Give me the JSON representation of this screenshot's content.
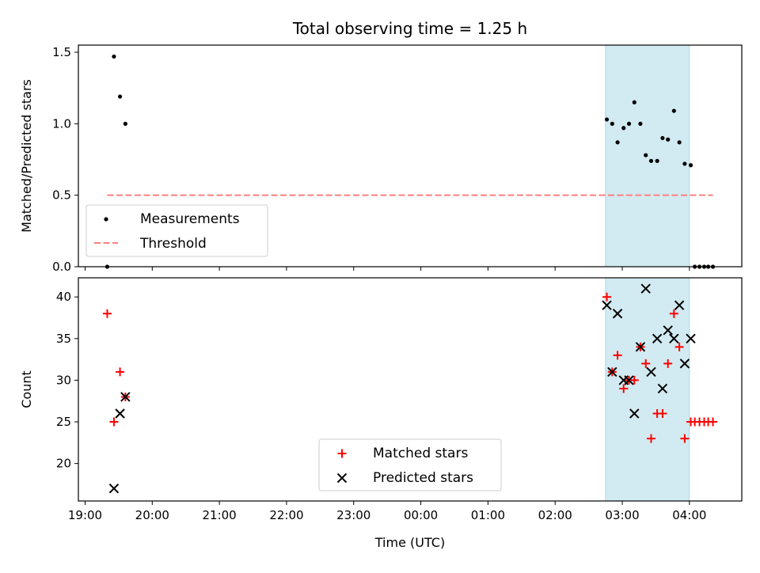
{
  "chart_data": {
    "title": "Total observing time = 1.25 h",
    "x_axis": {
      "label": "Time (UTC)",
      "unit": "hours since 19:00 UTC",
      "ticks": [
        {
          "v": 0,
          "label": "19:00"
        },
        {
          "v": 1,
          "label": "20:00"
        },
        {
          "v": 2,
          "label": "21:00"
        },
        {
          "v": 3,
          "label": "22:00"
        },
        {
          "v": 4,
          "label": "23:00"
        },
        {
          "v": 5,
          "label": "00:00"
        },
        {
          "v": 6,
          "label": "01:00"
        },
        {
          "v": 7,
          "label": "02:00"
        },
        {
          "v": 8,
          "label": "03:00"
        },
        {
          "v": 9,
          "label": "04:00"
        }
      ],
      "range": [
        -0.1,
        9.78
      ]
    },
    "highlight_span": {
      "x_start": 7.75,
      "x_end": 9.0,
      "color": "#add8e6"
    },
    "charts": [
      {
        "type": "scatter",
        "ylabel": "Matched/Predicted stars",
        "ylim": [
          0,
          1.55
        ],
        "yticks": [
          {
            "v": 0,
            "label": "0.0"
          },
          {
            "v": 0.5,
            "label": "0.5"
          },
          {
            "v": 1.0,
            "label": "1.0"
          },
          {
            "v": 1.5,
            "label": "1.5"
          }
        ],
        "legend_position": "lower-left",
        "series": [
          {
            "name": "Measurements",
            "kind": "dot",
            "color": "#000000",
            "points": [
              [
                0.33,
                0.0
              ],
              [
                0.43,
                1.47
              ],
              [
                0.52,
                1.19
              ],
              [
                0.6,
                1.0
              ],
              [
                7.77,
                1.03
              ],
              [
                7.85,
                1.0
              ],
              [
                7.93,
                0.87
              ],
              [
                8.02,
                0.97
              ],
              [
                8.1,
                1.0
              ],
              [
                8.18,
                1.15
              ],
              [
                8.27,
                1.0
              ],
              [
                8.35,
                0.78
              ],
              [
                8.43,
                0.74
              ],
              [
                8.52,
                0.74
              ],
              [
                8.6,
                0.9
              ],
              [
                8.68,
                0.89
              ],
              [
                8.77,
                1.09
              ],
              [
                8.85,
                0.87
              ],
              [
                8.93,
                0.72
              ],
              [
                9.02,
                0.71
              ],
              [
                9.08,
                0.0
              ],
              [
                9.15,
                0.0
              ],
              [
                9.22,
                0.0
              ],
              [
                9.28,
                0.0
              ],
              [
                9.35,
                0.0
              ]
            ]
          },
          {
            "name": "Threshold",
            "kind": "dashed-line",
            "color": "#ff7f7f",
            "points": [
              [
                0.33,
                0.5
              ],
              [
                9.35,
                0.5
              ]
            ]
          }
        ]
      },
      {
        "type": "scatter",
        "ylabel": "Count",
        "ylim": [
          15.5,
          42.3
        ],
        "yticks": [
          {
            "v": 20,
            "label": "20"
          },
          {
            "v": 25,
            "label": "25"
          },
          {
            "v": 30,
            "label": "30"
          },
          {
            "v": 35,
            "label": "35"
          },
          {
            "v": 40,
            "label": "40"
          }
        ],
        "legend_position": "lower-center",
        "series": [
          {
            "name": "Matched stars",
            "kind": "plus",
            "color": "#ff0000",
            "points": [
              [
                0.33,
                38
              ],
              [
                0.43,
                25
              ],
              [
                0.52,
                31
              ],
              [
                0.6,
                28
              ],
              [
                7.77,
                40
              ],
              [
                7.85,
                31
              ],
              [
                7.93,
                33
              ],
              [
                8.02,
                29
              ],
              [
                8.1,
                30
              ],
              [
                8.18,
                30
              ],
              [
                8.27,
                34
              ],
              [
                8.35,
                32
              ],
              [
                8.43,
                23
              ],
              [
                8.52,
                26
              ],
              [
                8.6,
                26
              ],
              [
                8.68,
                32
              ],
              [
                8.77,
                38
              ],
              [
                8.85,
                34
              ],
              [
                8.93,
                23
              ],
              [
                9.02,
                25
              ],
              [
                9.08,
                25
              ],
              [
                9.15,
                25
              ],
              [
                9.22,
                25
              ],
              [
                9.28,
                25
              ],
              [
                9.35,
                25
              ]
            ]
          },
          {
            "name": "Predicted stars",
            "kind": "x",
            "color": "#000000",
            "points": [
              [
                0.43,
                17
              ],
              [
                0.52,
                26
              ],
              [
                0.6,
                28
              ],
              [
                7.77,
                39
              ],
              [
                7.85,
                31
              ],
              [
                7.93,
                38
              ],
              [
                8.02,
                30
              ],
              [
                8.1,
                30
              ],
              [
                8.18,
                26
              ],
              [
                8.27,
                34
              ],
              [
                8.35,
                41
              ],
              [
                8.43,
                31
              ],
              [
                8.52,
                35
              ],
              [
                8.6,
                29
              ],
              [
                8.68,
                36
              ],
              [
                8.77,
                35
              ],
              [
                8.85,
                39
              ],
              [
                8.93,
                32
              ],
              [
                9.02,
                35
              ]
            ]
          }
        ]
      }
    ]
  }
}
